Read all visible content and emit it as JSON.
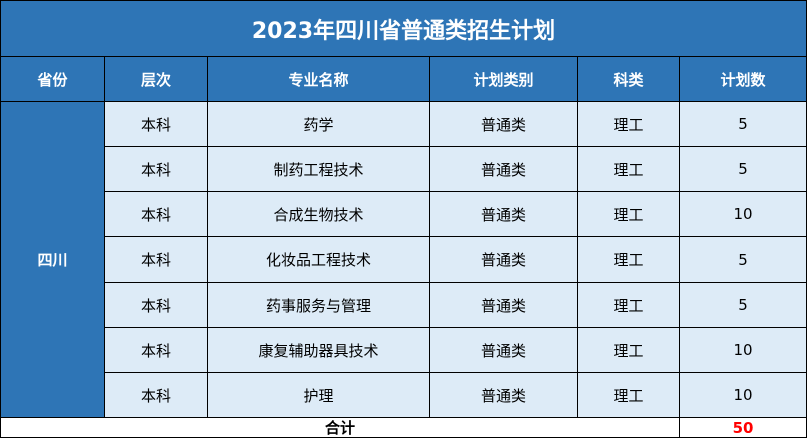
{
  "title": "2023年四川省普通类招生计划",
  "headers": [
    "省份",
    "层次",
    "专业名称",
    "计划类别",
    "科类",
    "计划数"
  ],
  "province": "四川",
  "rows": [
    {
      "level": "本科",
      "major": "药学",
      "type": "普通类",
      "category": "理工",
      "count": "5"
    },
    {
      "level": "本科",
      "major": "制药工程技术",
      "type": "普通类",
      "category": "理工",
      "count": "5"
    },
    {
      "level": "本科",
      "major": "合成生物技术",
      "type": "普通类",
      "category": "理工",
      "count": "10"
    },
    {
      "level": "本科",
      "major": "化妆品工程技术",
      "type": "普通类",
      "category": "理工",
      "count": "5"
    },
    {
      "level": "本科",
      "major": "药事服务与管理",
      "type": "普通类",
      "category": "理工",
      "count": "5"
    },
    {
      "level": "本科",
      "major": "康复辅助器具技术",
      "type": "普通类",
      "category": "理工",
      "count": "10"
    },
    {
      "level": "本科",
      "major": "护理",
      "type": "普通类",
      "category": "理工",
      "count": "10"
    }
  ],
  "total": {
    "label": "合计",
    "value": "50"
  },
  "colors": {
    "header_bg": "#2e75b6",
    "row_bg": "#ddebf7",
    "total_value": "#ff0000"
  }
}
